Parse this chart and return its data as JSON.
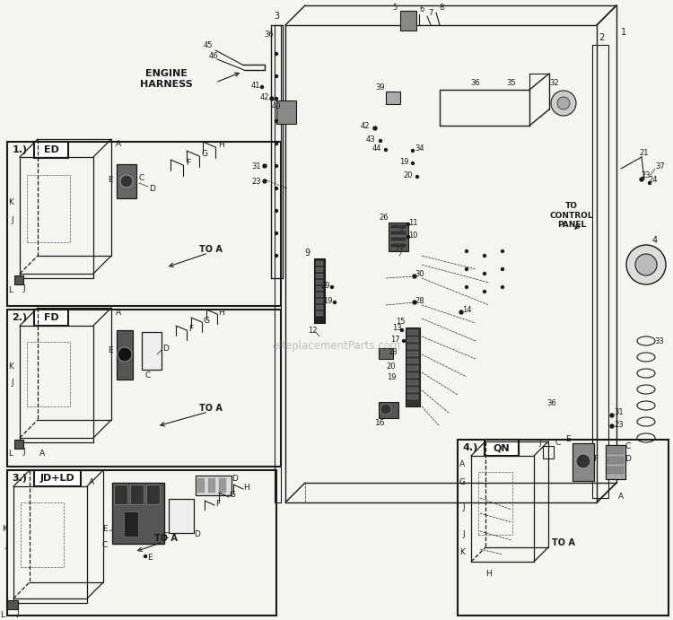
{
  "bg_color": "#f5f5f0",
  "line_color": "#1a1a1a",
  "watermark": "eReplacementParts.com",
  "box1_title": "ED",
  "box2_title": "FD",
  "box3_title": "JD+LD",
  "box4_title": "QN",
  "to_a": "TO A",
  "to_control_panel": "TO\nCONTROL\nPANEL",
  "engine_harness": "ENGINE\nHARNESS"
}
